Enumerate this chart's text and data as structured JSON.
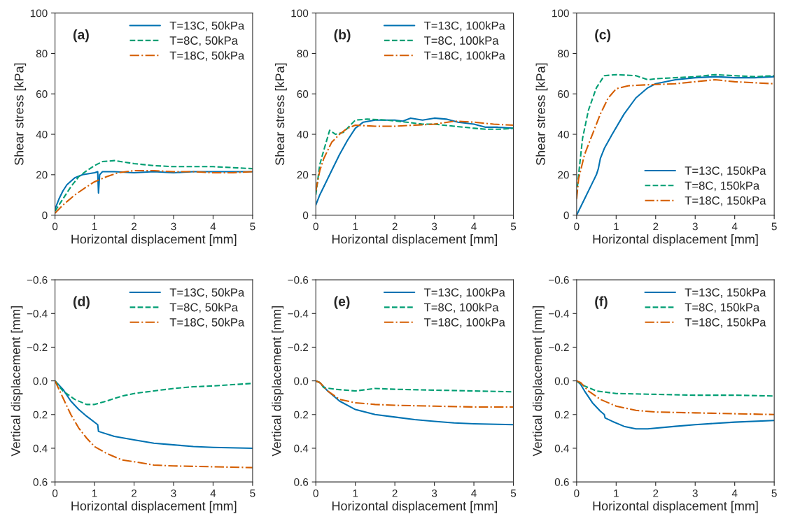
{
  "chart_data": [
    {
      "type": "line",
      "xlabel": "Horizontal displacement [mm]",
      "ylabel": "Shear stress [kPa]",
      "annotations": [
        "(a)"
      ],
      "xlim": [
        0,
        5
      ],
      "xticks": [
        0,
        1,
        2,
        3,
        4,
        5
      ],
      "ylim": [
        0,
        100
      ],
      "yticks": [
        0,
        20,
        40,
        60,
        80,
        100
      ],
      "legend": "top right",
      "series": [
        {
          "name": "T=13C, 50kPa",
          "color": "#0072b2",
          "line_style": "solid",
          "x": [
            0,
            0.1,
            0.2,
            0.3,
            0.5,
            0.7,
            1.0,
            1.08,
            1.1,
            1.13,
            1.2,
            1.5,
            2,
            2.5,
            3,
            3.5,
            4,
            4.5,
            5
          ],
          "values": [
            3,
            8,
            12,
            15,
            18.5,
            20,
            21,
            21.5,
            11,
            20,
            21.5,
            21.5,
            21,
            21.5,
            21,
            21.5,
            21.5,
            21.5,
            21.5
          ]
        },
        {
          "name": "T=8C, 50kPa",
          "color": "#009e73",
          "line_style": "dashed",
          "x": [
            0,
            0.2,
            0.4,
            0.6,
            0.8,
            1.0,
            1.2,
            1.5,
            2,
            2.5,
            3,
            3.5,
            4,
            4.5,
            5
          ],
          "values": [
            2,
            8,
            14,
            19,
            22,
            24.5,
            26.5,
            27,
            25.5,
            24.5,
            24,
            24,
            24,
            23.5,
            23
          ]
        },
        {
          "name": "T=18C, 50kPa",
          "color": "#d55e00",
          "line_style": "dashdot",
          "x": [
            0,
            0.2,
            0.5,
            0.8,
            1.0,
            1.3,
            1.6,
            2,
            2.5,
            3,
            3.5,
            4,
            4.5,
            5
          ],
          "values": [
            1,
            5,
            10,
            14,
            16.5,
            19,
            21,
            22,
            22,
            21.5,
            21.5,
            21,
            21,
            21.5
          ]
        }
      ]
    },
    {
      "type": "line",
      "xlabel": "Horizontal displacement [mm]",
      "ylabel": "Shear stress [kPa]",
      "annotations": [
        "(b)"
      ],
      "xlim": [
        0,
        5
      ],
      "xticks": [
        0,
        1,
        2,
        3,
        4,
        5
      ],
      "ylim": [
        0,
        100
      ],
      "yticks": [
        0,
        20,
        40,
        60,
        80,
        100
      ],
      "legend": "top right",
      "series": [
        {
          "name": "T=13C, 100kPa",
          "color": "#0072b2",
          "line_style": "solid",
          "x": [
            0,
            0.1,
            0.2,
            0.4,
            0.6,
            0.8,
            1.0,
            1.2,
            1.5,
            2,
            2.2,
            2.4,
            2.7,
            3,
            3.3,
            3.6,
            4,
            4.3,
            4.6,
            5
          ],
          "values": [
            5,
            10,
            14,
            22,
            30,
            37,
            43,
            46,
            47,
            47,
            46.5,
            48,
            47,
            48,
            47.5,
            46,
            45,
            43.5,
            43.5,
            43
          ]
        },
        {
          "name": "T=8C, 100kPa",
          "color": "#009e73",
          "line_style": "dashed",
          "x": [
            0,
            0.1,
            0.2,
            0.35,
            0.5,
            0.7,
            0.9,
            1.0,
            1.3,
            1.8,
            2.3,
            2.7,
            3,
            3.5,
            4,
            4.3,
            4.7,
            5
          ],
          "values": [
            10,
            25,
            32,
            42,
            40,
            41,
            45,
            47,
            47.5,
            47,
            46,
            45,
            45,
            44,
            43,
            42.5,
            42.5,
            43
          ]
        },
        {
          "name": "T=18C, 100kPa",
          "color": "#d55e00",
          "line_style": "dashdot",
          "x": [
            0,
            0.1,
            0.2,
            0.4,
            0.6,
            0.8,
            1.0,
            1.5,
            2,
            2.5,
            3,
            3.5,
            4,
            4.5,
            5
          ],
          "values": [
            12,
            22,
            28,
            36,
            40,
            43,
            44.5,
            44,
            44,
            44.5,
            45,
            46.5,
            46,
            45,
            44.5
          ]
        }
      ]
    },
    {
      "type": "line",
      "xlabel": "Horizontal displacement [mm]",
      "ylabel": "Shear stress [kPa]",
      "annotations": [
        "(c)"
      ],
      "xlim": [
        0,
        5
      ],
      "xticks": [
        0,
        1,
        2,
        3,
        4,
        5
      ],
      "ylim": [
        0,
        100
      ],
      "yticks": [
        0,
        20,
        40,
        60,
        80,
        100
      ],
      "legend": "bottom right",
      "series": [
        {
          "name": "T=13C, 150kPa",
          "color": "#0072b2",
          "line_style": "solid",
          "x": [
            0,
            0.2,
            0.4,
            0.5,
            0.55,
            0.57,
            0.6,
            0.7,
            0.9,
            1.2,
            1.5,
            1.8,
            2,
            2.5,
            3,
            3.5,
            4,
            4.5,
            5
          ],
          "values": [
            0,
            8,
            16,
            20,
            23,
            25,
            28,
            33,
            40,
            50,
            58,
            63,
            65,
            67,
            68,
            68.5,
            68,
            68,
            68.5
          ]
        },
        {
          "name": "T=8C, 150kPa",
          "color": "#009e73",
          "line_style": "dashed",
          "x": [
            0,
            0.05,
            0.15,
            0.3,
            0.5,
            0.7,
            1.0,
            1.5,
            1.8,
            2,
            2.5,
            3,
            3.5,
            4,
            4.5,
            5
          ],
          "values": [
            10,
            20,
            38,
            52,
            63,
            69,
            69.5,
            69,
            67,
            67.5,
            68,
            68.5,
            69.5,
            69,
            68.5,
            69
          ]
        },
        {
          "name": "T=18C, 150kPa",
          "color": "#d55e00",
          "line_style": "dashdot",
          "x": [
            0,
            0.05,
            0.2,
            0.4,
            0.6,
            0.8,
            1.0,
            1.3,
            1.8,
            2.5,
            3,
            3.5,
            4,
            4.5,
            5
          ],
          "values": [
            8,
            18,
            30,
            40,
            50,
            58,
            62.5,
            64,
            64.5,
            65,
            66,
            67,
            66,
            65.5,
            65
          ]
        }
      ]
    },
    {
      "type": "line",
      "xlabel": "Horizontal displacement [mm]",
      "ylabel": "Vertical displacement [mm]",
      "annotations": [
        "(d)"
      ],
      "xlim": [
        0,
        5
      ],
      "xticks": [
        0,
        1,
        2,
        3,
        4,
        5
      ],
      "ylim": [
        0.6,
        -0.6
      ],
      "yticks": [
        {
          "value": -0.6,
          "label": "−0.6"
        },
        {
          "value": -0.4,
          "label": "−0.4"
        },
        {
          "value": -0.2,
          "label": "−0.2"
        },
        {
          "value": 0,
          "label": "0.0"
        },
        0.2,
        0.4,
        0.6
      ],
      "legend": "top right",
      "series": [
        {
          "name": "T=13C, 50kPa",
          "color": "#0072b2",
          "line_style": "solid",
          "x": [
            0,
            0.2,
            0.4,
            0.6,
            0.8,
            1.08,
            1.1,
            1.5,
            2,
            2.5,
            3,
            3.5,
            4,
            5
          ],
          "values": [
            0,
            0.05,
            0.12,
            0.17,
            0.21,
            0.26,
            0.3,
            0.33,
            0.35,
            0.37,
            0.38,
            0.39,
            0.395,
            0.4
          ]
        },
        {
          "name": "T=8C, 50kPa",
          "color": "#009e73",
          "line_style": "dashed",
          "x": [
            0,
            0.2,
            0.5,
            0.8,
            1.0,
            1.3,
            1.7,
            2,
            2.5,
            3,
            3.5,
            4,
            5
          ],
          "values": [
            0,
            0.06,
            0.11,
            0.14,
            0.14,
            0.12,
            0.09,
            0.075,
            0.06,
            0.045,
            0.035,
            0.03,
            0.015
          ]
        },
        {
          "name": "T=18C, 50kPa",
          "color": "#d55e00",
          "line_style": "dashdot",
          "x": [
            0,
            0.2,
            0.4,
            0.6,
            0.8,
            1,
            1.3,
            1.7,
            2,
            2.5,
            3,
            4,
            5
          ],
          "values": [
            0,
            0.1,
            0.2,
            0.28,
            0.34,
            0.39,
            0.43,
            0.47,
            0.48,
            0.5,
            0.505,
            0.51,
            0.515
          ]
        }
      ]
    },
    {
      "type": "line",
      "xlabel": "Horizontal displacement [mm]",
      "ylabel": "Vertical displacement [mm]",
      "annotations": [
        "(e)"
      ],
      "xlim": [
        0,
        5
      ],
      "xticks": [
        0,
        1,
        2,
        3,
        4,
        5
      ],
      "ylim": [
        0.6,
        -0.6
      ],
      "yticks": [
        {
          "value": -0.6,
          "label": "−0.6"
        },
        {
          "value": -0.4,
          "label": "−0.4"
        },
        {
          "value": -0.2,
          "label": "−0.2"
        },
        {
          "value": 0,
          "label": "0.0"
        },
        0.2,
        0.4,
        0.6
      ],
      "legend": "top right",
      "series": [
        {
          "name": "T=13C, 100kPa",
          "color": "#0072b2",
          "line_style": "solid",
          "x": [
            0,
            0.1,
            0.3,
            0.6,
            1,
            1.5,
            2,
            2.5,
            3,
            3.5,
            4,
            5
          ],
          "values": [
            0,
            0.01,
            0.06,
            0.12,
            0.17,
            0.2,
            0.215,
            0.23,
            0.24,
            0.25,
            0.255,
            0.26
          ]
        },
        {
          "name": "T=8C, 100kPa",
          "color": "#009e73",
          "line_style": "dashed",
          "x": [
            0,
            0.1,
            0.2,
            0.5,
            1,
            1.5,
            2,
            3,
            4,
            5
          ],
          "values": [
            0,
            0.01,
            0.04,
            0.05,
            0.06,
            0.045,
            0.05,
            0.055,
            0.06,
            0.065
          ]
        },
        {
          "name": "T=18C, 100kPa",
          "color": "#d55e00",
          "line_style": "dashdot",
          "x": [
            0,
            0.1,
            0.3,
            0.6,
            1,
            1.5,
            2,
            3,
            4,
            5
          ],
          "values": [
            0,
            0.01,
            0.06,
            0.11,
            0.13,
            0.14,
            0.145,
            0.15,
            0.155,
            0.155
          ]
        }
      ]
    },
    {
      "type": "line",
      "xlabel": "Horizontal displacement [mm]",
      "ylabel": "Vertical displacement [mm]",
      "annotations": [
        "(f)"
      ],
      "xlim": [
        0,
        5
      ],
      "xticks": [
        0,
        1,
        2,
        3,
        4,
        5
      ],
      "ylim": [
        0.6,
        -0.6
      ],
      "yticks": [
        {
          "value": -0.6,
          "label": "−0.6"
        },
        {
          "value": -0.4,
          "label": "−0.4"
        },
        {
          "value": -0.2,
          "label": "−0.2"
        },
        {
          "value": 0,
          "label": "0.0"
        },
        0.2,
        0.4,
        0.6
      ],
      "legend": "top right",
      "series": [
        {
          "name": "T=13C, 150kPa",
          "color": "#0072b2",
          "line_style": "solid",
          "x": [
            0,
            0.1,
            0.2,
            0.4,
            0.6,
            0.7,
            0.72,
            0.9,
            1.2,
            1.5,
            1.8,
            2.5,
            3,
            4,
            5
          ],
          "values": [
            0,
            0.02,
            0.06,
            0.13,
            0.18,
            0.2,
            0.22,
            0.24,
            0.27,
            0.285,
            0.285,
            0.27,
            0.26,
            0.245,
            0.235
          ]
        },
        {
          "name": "T=8C, 150kPa",
          "color": "#009e73",
          "line_style": "dashed",
          "x": [
            0,
            0.2,
            0.5,
            1,
            2,
            3,
            4,
            5
          ],
          "values": [
            0,
            0.03,
            0.06,
            0.075,
            0.08,
            0.085,
            0.085,
            0.09
          ]
        },
        {
          "name": "T=18C, 150kPa",
          "color": "#d55e00",
          "line_style": "dashdot",
          "x": [
            0,
            0.1,
            0.3,
            0.6,
            1,
            1.5,
            2,
            3,
            4,
            5
          ],
          "values": [
            0,
            0.01,
            0.06,
            0.11,
            0.15,
            0.175,
            0.185,
            0.19,
            0.195,
            0.2
          ]
        }
      ]
    }
  ]
}
